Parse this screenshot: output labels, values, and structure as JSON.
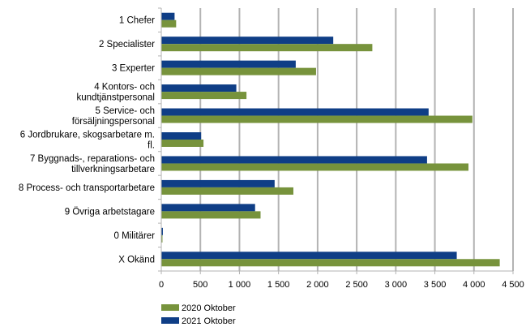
{
  "chart_data": {
    "type": "bar",
    "orientation": "horizontal",
    "categories": [
      [
        "1 Chefer"
      ],
      [
        "2 Specialister"
      ],
      [
        "3 Experter"
      ],
      [
        "4 Kontors- och",
        "kundtjänstpersonal"
      ],
      [
        "5 Service- och",
        "försäljningspersonal"
      ],
      [
        "6 Jordbrukare, skogsarbetare m.",
        "fl."
      ],
      [
        "7 Byggnads-, reparations- och",
        "tillverkningsarbetare"
      ],
      [
        "8 Process- och transportarbetare"
      ],
      [
        "9 Övriga arbetstagare"
      ],
      [
        "0 Militärer"
      ],
      [
        "X Okänd"
      ]
    ],
    "series": [
      {
        "name": "2020 Oktober",
        "color": "#77933c",
        "values": [
          190,
          2700,
          1980,
          1090,
          3980,
          540,
          3930,
          1690,
          1270,
          15,
          4330
        ]
      },
      {
        "name": "2021 Oktober",
        "color": "#0f3e86",
        "values": [
          170,
          2200,
          1720,
          960,
          3420,
          510,
          3400,
          1450,
          1200,
          20,
          3780
        ]
      }
    ],
    "xlim": [
      0,
      4500
    ],
    "xticks": [
      {
        "value": 0,
        "label": "0"
      },
      {
        "value": 500,
        "label": "500"
      },
      {
        "value": 1000,
        "label": "1 000"
      },
      {
        "value": 1500,
        "label": "1 500"
      },
      {
        "value": 2000,
        "label": "2 000"
      },
      {
        "value": 2500,
        "label": "2 500"
      },
      {
        "value": 3000,
        "label": "3 000"
      },
      {
        "value": 3500,
        "label": "3 500"
      },
      {
        "value": 4000,
        "label": "4 000"
      },
      {
        "value": 4500,
        "label": "4 500"
      }
    ],
    "grid": "vertical",
    "legend": "bottom-left",
    "title": "",
    "xlabel": "",
    "ylabel": ""
  }
}
